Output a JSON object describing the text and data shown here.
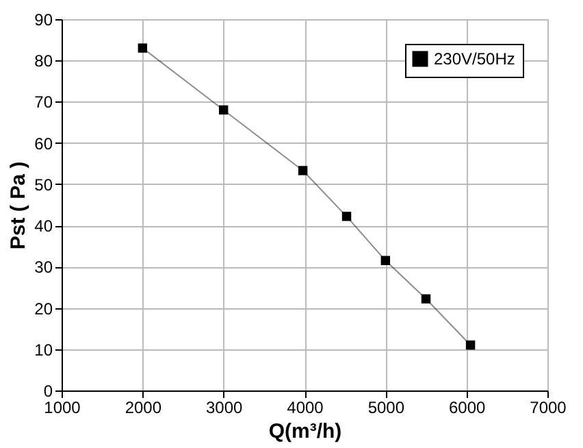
{
  "chart_data": {
    "type": "line",
    "xlabel": "Q(m³/h)",
    "ylabel": "Pst ( Pa )",
    "x": [
      2000,
      3000,
      3980,
      4520,
      5000,
      5500,
      6050
    ],
    "series": [
      {
        "name": "230V/50Hz",
        "color": "#000000",
        "values": [
          83,
          68,
          53.3,
          42.2,
          31.5,
          22.2,
          11
        ]
      }
    ],
    "xlim": [
      1000,
      7000
    ],
    "xticks": [
      1000,
      2000,
      3000,
      4000,
      5000,
      6000,
      7000
    ],
    "ylim": [
      0,
      90
    ],
    "yticks": [
      0,
      10,
      20,
      30,
      40,
      50,
      60,
      70,
      80,
      90
    ],
    "grid": true,
    "legend": "top right",
    "marker": "square",
    "line_style": "solid"
  }
}
